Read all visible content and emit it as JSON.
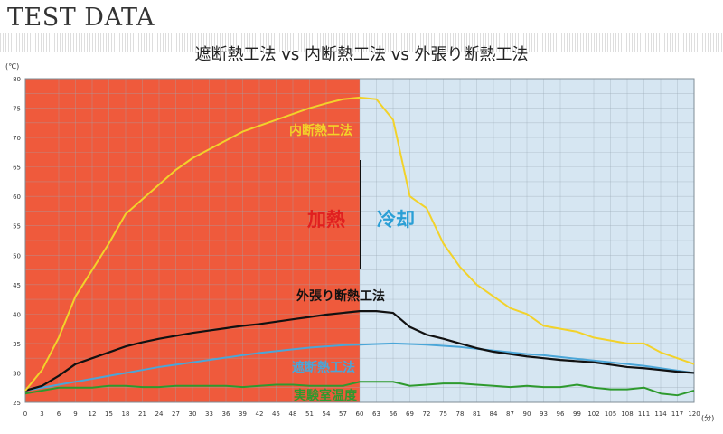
{
  "page_title": "TEST DATA",
  "colors": {
    "heat_bg": "#ef5a3c",
    "cool_bg": "#d6e6f2",
    "inner": "#f2d22a",
    "outer": "#111111",
    "shield": "#4aa6d8",
    "room": "#2e9a2e",
    "heat_text": "#e02020",
    "cool_text": "#2a9fd6",
    "grid": "#9aa8b4"
  },
  "chart_data": {
    "type": "line",
    "title": "遮断熱工法 vs 内断熱工法 vs 外張り断熱工法",
    "y_unit": "(℃)",
    "x_unit": "(分)",
    "ylim": [
      25,
      80
    ],
    "xlim": [
      0,
      120
    ],
    "grid": true,
    "y_ticks": [
      "25",
      "30",
      "35",
      "40",
      "45",
      "50",
      "55",
      "60",
      "65",
      "70",
      "75",
      "80"
    ],
    "x_ticks": [
      "0",
      "3",
      "6",
      "9",
      "12",
      "15",
      "18",
      "21",
      "24",
      "27",
      "30",
      "33",
      "36",
      "39",
      "42",
      "45",
      "48",
      "51",
      "54",
      "57",
      "60",
      "63",
      "66",
      "69",
      "72",
      "75",
      "78",
      "81",
      "84",
      "87",
      "90",
      "93",
      "96",
      "99",
      "102",
      "105",
      "108",
      "111",
      "114",
      "117",
      "120"
    ],
    "phase_labels": {
      "heating": "加熱",
      "cooling": "冷却"
    },
    "series": [
      {
        "name": "内断熱工法",
        "key": "inner",
        "x": [
          0,
          3,
          6,
          9,
          12,
          15,
          18,
          21,
          24,
          27,
          30,
          33,
          36,
          39,
          42,
          45,
          48,
          51,
          54,
          57,
          60,
          63,
          66,
          69,
          72,
          75,
          78,
          81,
          84,
          87,
          90,
          93,
          96,
          99,
          102,
          105,
          108,
          111,
          114,
          117,
          120
        ],
        "values": [
          27,
          30.5,
          36,
          43,
          47.5,
          52,
          57,
          59.5,
          62,
          64.5,
          66.5,
          68,
          69.5,
          71,
          72,
          73,
          74,
          75,
          75.8,
          76.5,
          76.8,
          76.5,
          73,
          60,
          58,
          52,
          48,
          45,
          43,
          41,
          40,
          38,
          37.5,
          37,
          36,
          35.5,
          35,
          35,
          33.5,
          32.5,
          31.5
        ]
      },
      {
        "name": "外張り断熱工法",
        "key": "outer",
        "x": [
          0,
          3,
          6,
          9,
          12,
          15,
          18,
          21,
          24,
          27,
          30,
          33,
          36,
          39,
          42,
          45,
          48,
          51,
          54,
          57,
          60,
          63,
          66,
          69,
          72,
          75,
          78,
          81,
          84,
          87,
          90,
          93,
          96,
          99,
          102,
          105,
          108,
          111,
          114,
          117,
          120
        ],
        "values": [
          27,
          27.8,
          29.5,
          31.5,
          32.5,
          33.5,
          34.5,
          35.2,
          35.8,
          36.3,
          36.8,
          37.2,
          37.6,
          38,
          38.3,
          38.7,
          39.1,
          39.5,
          39.9,
          40.2,
          40.5,
          40.5,
          40.2,
          37.8,
          36.5,
          35.8,
          35,
          34.2,
          33.6,
          33.2,
          32.8,
          32.5,
          32.2,
          32,
          31.8,
          31.4,
          31,
          30.8,
          30.5,
          30.2,
          30
        ]
      },
      {
        "name": "遮断熱工法",
        "key": "shield",
        "x": [
          0,
          3,
          6,
          9,
          12,
          15,
          18,
          21,
          24,
          27,
          30,
          33,
          36,
          39,
          42,
          45,
          48,
          51,
          54,
          57,
          60,
          63,
          66,
          69,
          72,
          75,
          78,
          81,
          84,
          87,
          90,
          93,
          96,
          99,
          102,
          105,
          108,
          111,
          114,
          117,
          120
        ],
        "values": [
          27,
          27.5,
          28,
          28.5,
          29,
          29.5,
          30,
          30.5,
          31,
          31.4,
          31.8,
          32.2,
          32.6,
          33,
          33.4,
          33.7,
          34,
          34.3,
          34.5,
          34.7,
          34.8,
          34.9,
          35,
          34.9,
          34.8,
          34.6,
          34.4,
          34.1,
          33.8,
          33.5,
          33.2,
          33,
          32.7,
          32.4,
          32.1,
          31.8,
          31.5,
          31.2,
          30.8,
          30.4,
          30
        ]
      },
      {
        "name": "実験室温度",
        "key": "room",
        "x": [
          0,
          3,
          6,
          9,
          12,
          15,
          18,
          21,
          24,
          27,
          30,
          33,
          36,
          39,
          42,
          45,
          48,
          51,
          54,
          57,
          60,
          63,
          66,
          69,
          72,
          75,
          78,
          81,
          84,
          87,
          90,
          93,
          96,
          99,
          102,
          105,
          108,
          111,
          114,
          117,
          120
        ],
        "values": [
          26.5,
          27,
          27.5,
          27.5,
          27.5,
          27.8,
          27.8,
          27.6,
          27.6,
          27.8,
          27.8,
          27.8,
          27.8,
          27.6,
          27.8,
          28,
          28,
          27.8,
          27.8,
          27.8,
          28.5,
          28.5,
          28.5,
          27.8,
          28,
          28.2,
          28.2,
          28,
          27.8,
          27.6,
          27.8,
          27.6,
          27.6,
          28,
          27.5,
          27.2,
          27.2,
          27.5,
          26.5,
          26.2,
          27
        ]
      }
    ]
  }
}
